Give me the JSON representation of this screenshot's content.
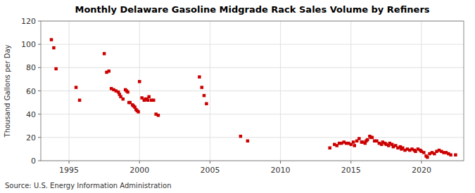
{
  "chart_data": {
    "type": "scatter",
    "title": "Monthly Delaware Gasoline Midgrade Rack Sales Volume by Refiners",
    "ylabel": "Thousand Gallons per Day",
    "source": "Source: U.S. Energy Information Administration",
    "color": "#cc0000",
    "marker": "square",
    "grid": true,
    "xlim": [
      1993.0,
      2023.0
    ],
    "xticks": [
      1995,
      2000,
      2005,
      2010,
      2015,
      2020
    ],
    "ylim": [
      0,
      120
    ],
    "yticks": [
      0,
      20,
      40,
      60,
      80,
      100,
      120
    ],
    "x": [
      1993.75,
      1993.92,
      1994.08,
      1995.5,
      1995.75,
      1997.5,
      1997.67,
      1997.83,
      1998.0,
      1998.17,
      1998.33,
      1998.5,
      1998.58,
      1998.67,
      1998.83,
      1999.0,
      1999.08,
      1999.17,
      1999.25,
      1999.33,
      1999.5,
      1999.58,
      1999.67,
      1999.75,
      1999.83,
      1999.92,
      2000.0,
      2000.17,
      2000.33,
      2000.42,
      2000.5,
      2000.58,
      2000.67,
      2000.83,
      2001.0,
      2001.17,
      2001.33,
      2004.25,
      2004.42,
      2004.58,
      2004.75,
      2007.17,
      2007.67,
      2013.5,
      2013.83,
      2014.0,
      2014.17,
      2014.33,
      2014.5,
      2014.67,
      2014.83,
      2015.0,
      2015.17,
      2015.25,
      2015.42,
      2015.58,
      2015.75,
      2015.83,
      2016.0,
      2016.08,
      2016.17,
      2016.33,
      2016.42,
      2016.5,
      2016.67,
      2016.83,
      2017.0,
      2017.17,
      2017.25,
      2017.42,
      2017.5,
      2017.67,
      2017.75,
      2017.92,
      2018.0,
      2018.17,
      2018.33,
      2018.5,
      2018.58,
      2018.67,
      2018.83,
      2019.0,
      2019.17,
      2019.33,
      2019.5,
      2019.58,
      2019.75,
      2019.92,
      2020.0,
      2020.17,
      2020.33,
      2020.42,
      2020.58,
      2020.75,
      2020.92,
      2021.08,
      2021.25,
      2021.42,
      2021.58,
      2021.75,
      2021.92,
      2022.08,
      2022.42
    ],
    "values": [
      104,
      97,
      79,
      63,
      52,
      92,
      76,
      77,
      62,
      61,
      60,
      59,
      57,
      55,
      53,
      61,
      60,
      59,
      50,
      50,
      48,
      47,
      46,
      44,
      43,
      42,
      68,
      54,
      52,
      53,
      53,
      52,
      55,
      52,
      52,
      40,
      39,
      72,
      63,
      56,
      49,
      21,
      17,
      11,
      14,
      13,
      15,
      15,
      16,
      15,
      15,
      14,
      16,
      13,
      17,
      19,
      16,
      16,
      15,
      17,
      18,
      21,
      20,
      20,
      17,
      17,
      15,
      14,
      16,
      15,
      14,
      13,
      15,
      14,
      12,
      13,
      11,
      12,
      10,
      11,
      9,
      10,
      9,
      10,
      9,
      8,
      10,
      9,
      8,
      7,
      4,
      3,
      6,
      7,
      6,
      8,
      9,
      8,
      7,
      7,
      6,
      5,
      5
    ]
  }
}
